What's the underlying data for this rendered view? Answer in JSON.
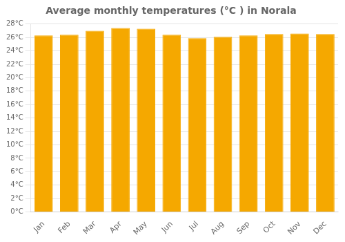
{
  "chart_data": {
    "type": "bar",
    "title": "Average monthly temperatures (°C ) in Norala",
    "categories": [
      "Jan",
      "Feb",
      "Mar",
      "Apr",
      "May",
      "Jun",
      "Jul",
      "Aug",
      "Sep",
      "Oct",
      "Nov",
      "Dec"
    ],
    "values": [
      26.3,
      26.4,
      27.0,
      27.4,
      27.3,
      26.4,
      25.9,
      26.1,
      26.3,
      26.5,
      26.6,
      26.5
    ],
    "color": "#F5A800",
    "ylim": [
      0,
      28
    ],
    "yticks": [
      {
        "value": 0,
        "label": "0°C"
      },
      {
        "value": 2,
        "label": "2°C"
      },
      {
        "value": 4,
        "label": "4°C"
      },
      {
        "value": 6,
        "label": "6°C"
      },
      {
        "value": 8,
        "label": "8°C"
      },
      {
        "value": 10,
        "label": "10°C"
      },
      {
        "value": 12,
        "label": "12°C"
      },
      {
        "value": 14,
        "label": "14°C"
      },
      {
        "value": 16,
        "label": "16°C"
      },
      {
        "value": 18,
        "label": "18°C"
      },
      {
        "value": 20,
        "label": "20°C"
      },
      {
        "value": 22,
        "label": "22°C"
      },
      {
        "value": 24,
        "label": "24°C"
      },
      {
        "value": 26,
        "label": "26°C"
      },
      {
        "value": 28,
        "label": "28°C"
      }
    ],
    "grid": true
  }
}
